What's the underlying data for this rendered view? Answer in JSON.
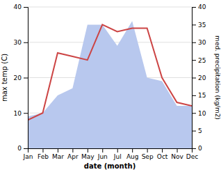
{
  "chart_data": {
    "type": "line",
    "categories": [
      "Jan",
      "Feb",
      "Mar",
      "Apr",
      "May",
      "Jun",
      "Jul",
      "Aug",
      "Sep",
      "Oct",
      "Nov",
      "Dec"
    ],
    "series": [
      {
        "type": "area",
        "color": "#b8c8ee",
        "axis": "y2",
        "values": [
          9,
          10,
          15,
          17,
          35,
          35,
          29,
          36,
          20,
          19,
          12,
          12
        ]
      },
      {
        "type": "line",
        "color": "#cc4444",
        "values": [
          8,
          10,
          27,
          26,
          25,
          35,
          33,
          34,
          34,
          20,
          13,
          12
        ]
      }
    ],
    "xlabel": "date (month)",
    "ylabel": "max temp (C)",
    "y2label": "med. precipitation (kg/m2)",
    "ylim": [
      0,
      40
    ],
    "yticks": [
      0,
      10,
      20,
      30,
      40
    ],
    "y2lim": [
      0,
      40
    ],
    "y2ticks": [
      0,
      5,
      10,
      15,
      20,
      25,
      30,
      35,
      40
    ],
    "grid": true
  }
}
